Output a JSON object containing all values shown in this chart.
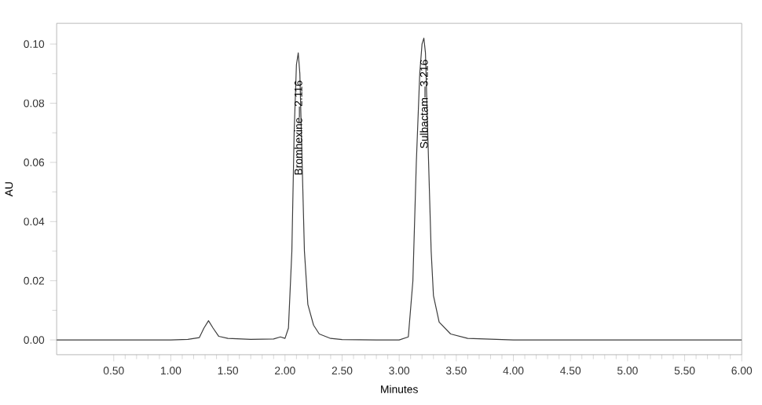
{
  "chart_data": {
    "type": "line",
    "xlabel": "Minutes",
    "ylabel": "AU",
    "xlim": [
      0,
      6
    ],
    "ylim": [
      -0.005,
      0.107
    ],
    "xticks": [
      {
        "value": 0.5,
        "label": "0.50"
      },
      {
        "value": 1.0,
        "label": "1.00"
      },
      {
        "value": 1.5,
        "label": "1.50"
      },
      {
        "value": 2.0,
        "label": "2.00"
      },
      {
        "value": 2.5,
        "label": "2.50"
      },
      {
        "value": 3.0,
        "label": "3.00"
      },
      {
        "value": 3.5,
        "label": "3.50"
      },
      {
        "value": 4.0,
        "label": "4.00"
      },
      {
        "value": 4.5,
        "label": "4.50"
      },
      {
        "value": 5.0,
        "label": "5.00"
      },
      {
        "value": 5.5,
        "label": "5.50"
      },
      {
        "value": 6.0,
        "label": "6.00"
      }
    ],
    "yticks": [
      {
        "value": 0,
        "label": "0.00"
      },
      {
        "value": 0.02,
        "label": "0.02"
      },
      {
        "value": 0.04,
        "label": "0.04"
      },
      {
        "value": 0.06,
        "label": "0.06"
      },
      {
        "value": 0.08,
        "label": "0.08"
      },
      {
        "value": 0.1,
        "label": "0.10"
      }
    ],
    "marker": "none",
    "line_style": "solid",
    "series": [
      {
        "color": "#3c3c3c",
        "x": [
          0,
          0.5,
          1.0,
          1.15,
          1.25,
          1.29,
          1.33,
          1.37,
          1.42,
          1.5,
          1.7,
          1.9,
          1.96,
          2.0,
          2.03,
          2.06,
          2.08,
          2.1,
          2.116,
          2.13,
          2.15,
          2.17,
          2.2,
          2.25,
          2.3,
          2.4,
          2.5,
          2.8,
          3.0,
          3.08,
          3.12,
          3.15,
          3.18,
          3.2,
          3.216,
          3.23,
          3.25,
          3.28,
          3.3,
          3.35,
          3.45,
          3.6,
          4.0,
          5.0,
          6.0
        ],
        "values": [
          0,
          0,
          0,
          0.0002,
          0.0008,
          0.004,
          0.0065,
          0.004,
          0.0012,
          0.0005,
          0.0002,
          0.0003,
          0.001,
          0.0005,
          0.004,
          0.03,
          0.07,
          0.093,
          0.097,
          0.09,
          0.06,
          0.03,
          0.012,
          0.005,
          0.002,
          0.0005,
          0.0001,
          0,
          0,
          0.001,
          0.02,
          0.06,
          0.09,
          0.1,
          0.102,
          0.097,
          0.07,
          0.03,
          0.015,
          0.006,
          0.002,
          0.0005,
          0,
          0,
          0
        ]
      }
    ],
    "annotations": [
      {
        "text": "Bromhexine—2.116",
        "x": 2.116,
        "y": 0.055
      },
      {
        "text": "Sulbactam—3.216",
        "x": 3.216,
        "y": 0.064
      }
    ]
  }
}
